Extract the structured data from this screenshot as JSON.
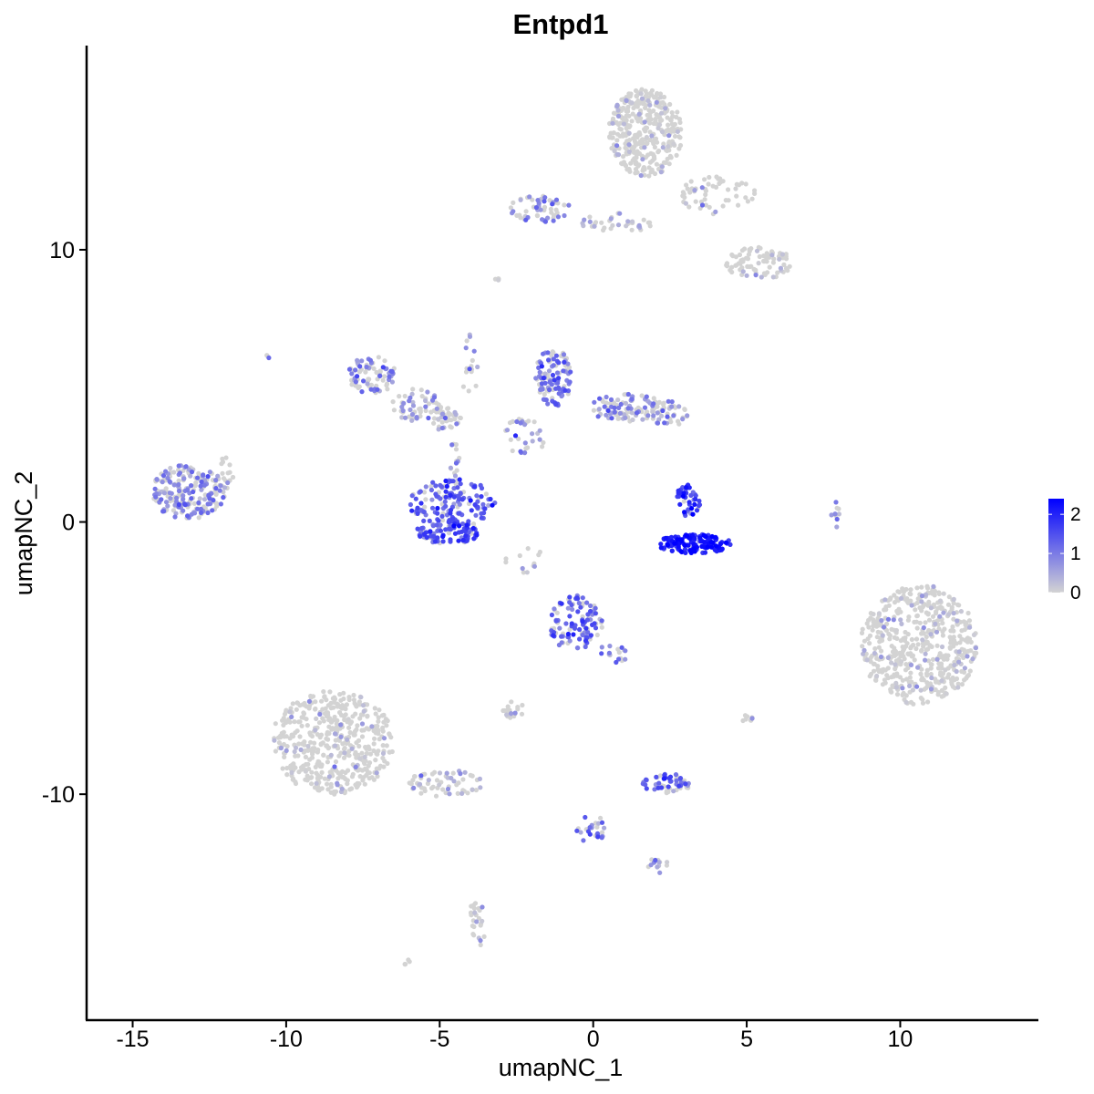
{
  "chart_data": {
    "type": "scatter",
    "title": "Entpd1",
    "xlabel": "umapNC_1",
    "ylabel": "umapNC_2",
    "xlim": [
      -16.5,
      14.5
    ],
    "ylim": [
      -18.3,
      17.5
    ],
    "x_ticks": [
      -15,
      -10,
      -5,
      0,
      5,
      10
    ],
    "x_tick_labels": [
      "-15",
      "-10",
      "-5",
      "0",
      "5",
      "10"
    ],
    "y_ticks": [
      -10,
      0,
      10
    ],
    "y_tick_labels": [
      "-10",
      "0",
      "10"
    ],
    "grid": false,
    "color_scale": {
      "low": "#d3d3d3",
      "high": "#0000ff",
      "min": 0,
      "max": 2.4
    },
    "legend": {
      "position": "right",
      "ticks": [
        0,
        1,
        2
      ],
      "tick_labels": [
        "0",
        "1",
        "2"
      ]
    },
    "clusters": [
      {
        "cx": 1.7,
        "cy": 14.3,
        "rx": 1.2,
        "ry": 1.6,
        "n": 340,
        "mean_expr": 0.12
      },
      {
        "cx": -1.8,
        "cy": 11.5,
        "rx": 1.1,
        "ry": 0.5,
        "n": 55,
        "mean_expr": 0.9
      },
      {
        "cx": 0.8,
        "cy": 11.0,
        "rx": 1.2,
        "ry": 0.35,
        "n": 35,
        "mean_expr": 0.45
      },
      {
        "cx": 4.0,
        "cy": 12.0,
        "rx": 1.3,
        "ry": 0.7,
        "n": 55,
        "mean_expr": 0.2
      },
      {
        "cx": 5.4,
        "cy": 9.5,
        "rx": 1.1,
        "ry": 0.6,
        "n": 80,
        "mean_expr": 0.12
      },
      {
        "cx": -7.2,
        "cy": 5.4,
        "rx": 0.8,
        "ry": 0.7,
        "n": 80,
        "mean_expr": 0.9
      },
      {
        "cx": -5.8,
        "cy": 4.3,
        "rx": 0.8,
        "ry": 0.6,
        "n": 50,
        "mean_expr": 0.75
      },
      {
        "cx": -4.8,
        "cy": 3.8,
        "rx": 0.5,
        "ry": 0.45,
        "n": 40,
        "mean_expr": 0.6
      },
      {
        "cx": -4.0,
        "cy": 5.5,
        "rx": 0.25,
        "ry": 1.6,
        "n": 16,
        "mean_expr": 0.55
      },
      {
        "cx": -1.3,
        "cy": 5.3,
        "rx": 0.6,
        "ry": 1.1,
        "n": 110,
        "mean_expr": 1.05
      },
      {
        "cx": 1.1,
        "cy": 4.2,
        "rx": 1.3,
        "ry": 0.5,
        "n": 90,
        "mean_expr": 0.8
      },
      {
        "cx": -2.2,
        "cy": 3.2,
        "rx": 0.7,
        "ry": 0.8,
        "n": 30,
        "mean_expr": 0.75
      },
      {
        "cx": 2.4,
        "cy": 4.0,
        "rx": 0.7,
        "ry": 0.5,
        "n": 40,
        "mean_expr": 0.85
      },
      {
        "cx": -13.2,
        "cy": 1.1,
        "rx": 1.2,
        "ry": 1.0,
        "n": 210,
        "mean_expr": 0.85
      },
      {
        "cx": -12.0,
        "cy": 1.7,
        "rx": 0.3,
        "ry": 0.8,
        "n": 18,
        "mean_expr": 0.3
      },
      {
        "cx": -4.6,
        "cy": 0.7,
        "rx": 1.4,
        "ry": 0.9,
        "n": 150,
        "mean_expr": 1.35
      },
      {
        "cx": -4.7,
        "cy": -0.4,
        "rx": 1.1,
        "ry": 0.4,
        "n": 90,
        "mean_expr": 1.45
      },
      {
        "cx": -4.5,
        "cy": 2.3,
        "rx": 0.2,
        "ry": 1.0,
        "n": 14,
        "mean_expr": 0.3
      },
      {
        "cx": -2.2,
        "cy": -1.4,
        "rx": 0.8,
        "ry": 0.5,
        "n": 12,
        "mean_expr": 0.2
      },
      {
        "cx": 3.1,
        "cy": 0.8,
        "rx": 0.4,
        "ry": 0.6,
        "n": 45,
        "mean_expr": 1.7
      },
      {
        "cx": 3.3,
        "cy": -0.8,
        "rx": 1.2,
        "ry": 0.35,
        "n": 150,
        "mean_expr": 2.05
      },
      {
        "cx": 7.9,
        "cy": 0.3,
        "rx": 0.15,
        "ry": 0.5,
        "n": 10,
        "mean_expr": 0.9
      },
      {
        "cx": 10.6,
        "cy": -4.5,
        "rx": 1.9,
        "ry": 2.2,
        "n": 520,
        "mean_expr": 0.15
      },
      {
        "cx": -0.6,
        "cy": -3.7,
        "rx": 0.9,
        "ry": 1.0,
        "n": 110,
        "mean_expr": 1.3
      },
      {
        "cx": 0.7,
        "cy": -4.8,
        "rx": 0.5,
        "ry": 0.4,
        "n": 16,
        "mean_expr": 1.0
      },
      {
        "cx": -8.5,
        "cy": -8.1,
        "rx": 2.0,
        "ry": 1.9,
        "n": 470,
        "mean_expr": 0.08
      },
      {
        "cx": -4.8,
        "cy": -9.6,
        "rx": 1.2,
        "ry": 0.5,
        "n": 60,
        "mean_expr": 0.5
      },
      {
        "cx": -2.6,
        "cy": -6.9,
        "rx": 0.4,
        "ry": 0.3,
        "n": 20,
        "mean_expr": 0.35
      },
      {
        "cx": 2.4,
        "cy": -9.6,
        "rx": 0.8,
        "ry": 0.35,
        "n": 55,
        "mean_expr": 1.2
      },
      {
        "cx": -0.1,
        "cy": -11.3,
        "rx": 0.5,
        "ry": 0.6,
        "n": 25,
        "mean_expr": 1.1
      },
      {
        "cx": 2.1,
        "cy": -12.6,
        "rx": 0.4,
        "ry": 0.3,
        "n": 14,
        "mean_expr": 0.6
      },
      {
        "cx": -3.8,
        "cy": -14.8,
        "rx": 0.3,
        "ry": 0.9,
        "n": 25,
        "mean_expr": 0.25
      },
      {
        "cx": 5.0,
        "cy": -7.3,
        "rx": 0.2,
        "ry": 0.3,
        "n": 8,
        "mean_expr": 0.2
      },
      {
        "cx": -6.1,
        "cy": -16.1,
        "rx": 0.15,
        "ry": 0.15,
        "n": 4,
        "mean_expr": 0.0
      },
      {
        "cx": -10.6,
        "cy": 6.1,
        "rx": 0.1,
        "ry": 0.1,
        "n": 3,
        "mean_expr": 0.5
      },
      {
        "cx": -3.1,
        "cy": 8.8,
        "rx": 0.2,
        "ry": 0.2,
        "n": 6,
        "mean_expr": 0.2
      }
    ]
  }
}
